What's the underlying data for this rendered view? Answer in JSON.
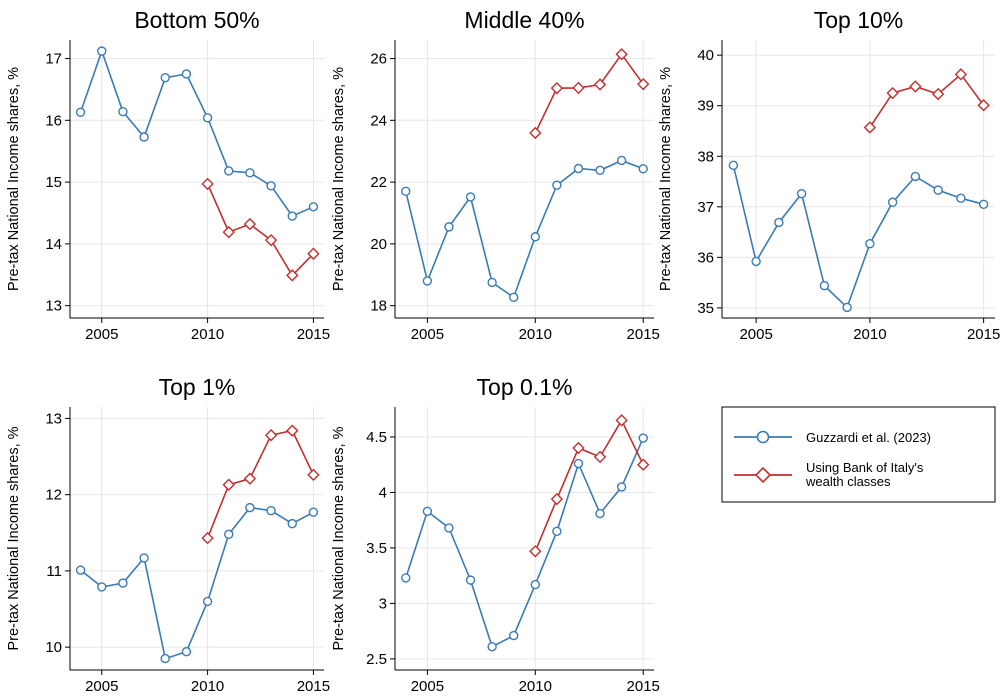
{
  "legend": {
    "placement": "right of bottom row",
    "entries": [
      {
        "label": "Guzzardi et al. (2023)",
        "color": "#3a7bb5",
        "marker": "circle"
      },
      {
        "label": "Using Bank of Italy's wealth classes",
        "color": "#c0302e",
        "marker": "diamond"
      }
    ]
  },
  "chart_data": [
    {
      "type": "line",
      "title": "Bottom 50%",
      "ylabel": "Pre-tax National Income shares, %",
      "xlim": [
        2003.5,
        2015.5
      ],
      "ylim": [
        12.8,
        17.3
      ],
      "xticks": [
        2005,
        2010,
        2015
      ],
      "yticks": [
        13,
        14,
        15,
        16,
        17
      ],
      "grid": true,
      "series": [
        {
          "name": "Guzzardi et al. (2023)",
          "color": "#3a7bb5",
          "marker": "circle",
          "x": [
            2004,
            2005,
            2006,
            2007,
            2008,
            2009,
            2010,
            2011,
            2012,
            2013,
            2014,
            2015
          ],
          "y": [
            16.13,
            17.12,
            16.14,
            15.73,
            16.69,
            16.75,
            16.04,
            15.18,
            15.15,
            14.94,
            14.45,
            14.6
          ]
        },
        {
          "name": "Using Bank of Italy's wealth classes",
          "color": "#c0302e",
          "marker": "diamond",
          "x": [
            2010,
            2011,
            2012,
            2013,
            2014,
            2015
          ],
          "y": [
            14.97,
            14.19,
            14.32,
            14.06,
            13.49,
            13.84
          ]
        }
      ]
    },
    {
      "type": "line",
      "title": "Middle 40%",
      "ylabel": "Pre-tax National Income shares, %",
      "xlim": [
        2003.5,
        2015.5
      ],
      "ylim": [
        17.6,
        26.6
      ],
      "xticks": [
        2005,
        2010,
        2015
      ],
      "yticks": [
        18,
        20,
        22,
        24,
        26
      ],
      "grid": true,
      "series": [
        {
          "name": "Guzzardi et al. (2023)",
          "color": "#3a7bb5",
          "marker": "circle",
          "x": [
            2004,
            2005,
            2006,
            2007,
            2008,
            2009,
            2010,
            2011,
            2012,
            2013,
            2014,
            2015
          ],
          "y": [
            21.7,
            18.8,
            20.55,
            21.52,
            18.75,
            18.27,
            20.23,
            21.9,
            22.44,
            22.38,
            22.7,
            22.43
          ]
        },
        {
          "name": "Using Bank of Italy's wealth classes",
          "color": "#c0302e",
          "marker": "diamond",
          "x": [
            2010,
            2011,
            2012,
            2013,
            2014,
            2015
          ],
          "y": [
            23.59,
            25.04,
            25.05,
            25.16,
            26.14,
            25.17
          ]
        }
      ]
    },
    {
      "type": "line",
      "title": "Top 10%",
      "ylabel": "Pre-tax National Income shares, %",
      "xlim": [
        2003.5,
        2015.5
      ],
      "ylim": [
        34.8,
        40.3
      ],
      "xticks": [
        2005,
        2010,
        2015
      ],
      "yticks": [
        35,
        36,
        37,
        38,
        39,
        40
      ],
      "grid": true,
      "series": [
        {
          "name": "Guzzardi et al. (2023)",
          "color": "#3a7bb5",
          "marker": "circle",
          "x": [
            2004,
            2005,
            2006,
            2007,
            2008,
            2009,
            2010,
            2011,
            2012,
            2013,
            2014,
            2015
          ],
          "y": [
            37.82,
            35.92,
            36.69,
            37.26,
            35.44,
            35.01,
            36.27,
            37.09,
            37.6,
            37.33,
            37.17,
            37.05
          ]
        },
        {
          "name": "Using Bank of Italy's wealth classes",
          "color": "#c0302e",
          "marker": "diamond",
          "x": [
            2010,
            2011,
            2012,
            2013,
            2014,
            2015
          ],
          "y": [
            38.57,
            39.25,
            39.38,
            39.23,
            39.62,
            39.01
          ]
        }
      ]
    },
    {
      "type": "line",
      "title": "Top 1%",
      "ylabel": "Pre-tax National Income shares, %",
      "xlim": [
        2003.5,
        2015.5
      ],
      "ylim": [
        9.7,
        13.15
      ],
      "xticks": [
        2005,
        2010,
        2015
      ],
      "yticks": [
        10,
        11,
        12,
        13
      ],
      "grid": true,
      "series": [
        {
          "name": "Guzzardi et al. (2023)",
          "color": "#3a7bb5",
          "marker": "circle",
          "x": [
            2004,
            2005,
            2006,
            2007,
            2008,
            2009,
            2010,
            2011,
            2012,
            2013,
            2014,
            2015
          ],
          "y": [
            11.01,
            10.79,
            10.84,
            11.17,
            9.85,
            9.94,
            10.6,
            11.48,
            11.83,
            11.79,
            11.62,
            11.77
          ]
        },
        {
          "name": "Using Bank of Italy's wealth classes",
          "color": "#c0302e",
          "marker": "diamond",
          "x": [
            2010,
            2011,
            2012,
            2013,
            2014,
            2015
          ],
          "y": [
            11.43,
            12.13,
            12.21,
            12.78,
            12.84,
            12.26
          ]
        }
      ]
    },
    {
      "type": "line",
      "title": "Top 0.1%",
      "ylabel": "Pre-tax National Income shares, %",
      "xlim": [
        2003.5,
        2015.5
      ],
      "ylim": [
        2.4,
        4.77
      ],
      "xticks": [
        2005,
        2010,
        2015
      ],
      "yticks": [
        2.5,
        3,
        3.5,
        4,
        4.5
      ],
      "grid": true,
      "series": [
        {
          "name": "Guzzardi et al. (2023)",
          "color": "#3a7bb5",
          "marker": "circle",
          "x": [
            2004,
            2005,
            2006,
            2007,
            2008,
            2009,
            2010,
            2011,
            2012,
            2013,
            2014,
            2015
          ],
          "y": [
            3.23,
            3.83,
            3.68,
            3.21,
            2.61,
            2.71,
            3.17,
            3.65,
            4.26,
            3.81,
            4.05,
            4.49
          ]
        },
        {
          "name": "Using Bank of Italy's wealth classes",
          "color": "#c0302e",
          "marker": "diamond",
          "x": [
            2010,
            2011,
            2012,
            2013,
            2014,
            2015
          ],
          "y": [
            3.47,
            3.94,
            4.4,
            4.32,
            4.65,
            4.25
          ]
        }
      ]
    }
  ]
}
